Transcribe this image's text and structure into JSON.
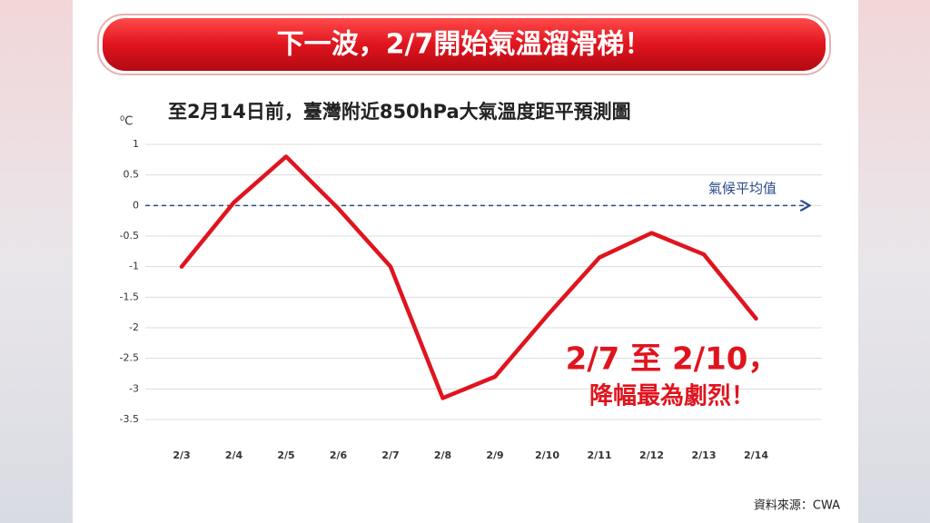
{
  "chart_data": {
    "type": "line",
    "banner": "下一波，2/7開始氣溫溜滑梯！",
    "title": "至2月14日前，臺灣附近850hPa大氣溫度距平預測圖",
    "y_label": "⁰C",
    "categories": [
      "2/3",
      "2/4",
      "2/5",
      "2/6",
      "2/7",
      "2/8",
      "2/9",
      "2/10",
      "2/11",
      "2/12",
      "2/13",
      "2/14"
    ],
    "series": [
      {
        "color": "#e0141e",
        "values": [
          -1,
          0.05,
          0.8,
          -0.05,
          -1,
          -3.15,
          -2.8,
          -1.8,
          -0.85,
          -0.45,
          -0.8,
          -1.85
        ]
      }
    ],
    "ylim": [
      -3.5,
      1
    ],
    "yticks": [
      1,
      0.5,
      0,
      -0.5,
      -1,
      -1.5,
      -2,
      -2.5,
      -3,
      -3.5
    ],
    "grid": true,
    "reference_line": {
      "value": 0,
      "label": "氣候平均值",
      "color": "#2a4a8a"
    },
    "annotations": [
      "2/7 至 2/10，",
      "降幅最為劇烈！"
    ],
    "source": "資料來源：CWA"
  }
}
